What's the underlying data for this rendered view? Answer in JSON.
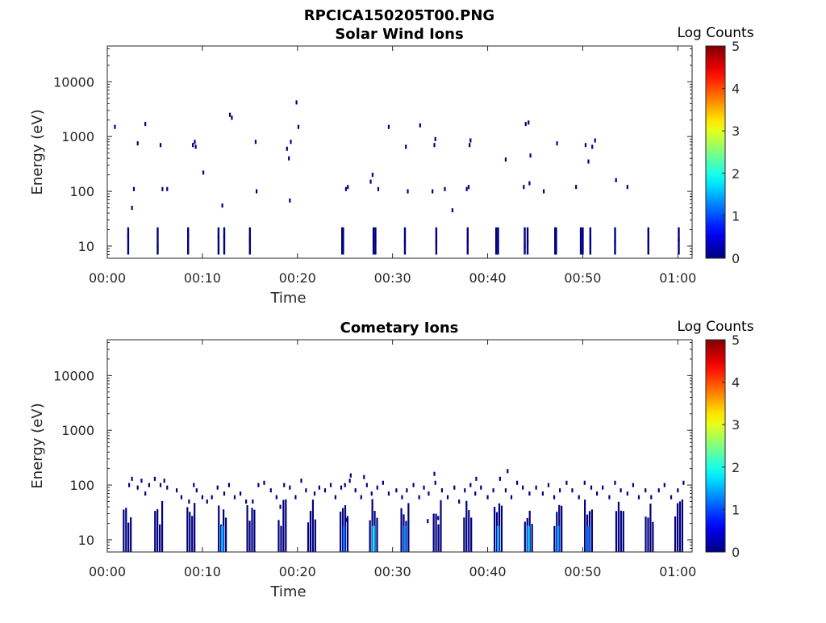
{
  "figure": {
    "title": "RPCICA150205T00.PNG"
  },
  "chart_data": [
    {
      "type": "heatmap",
      "title": "Solar Wind Ions",
      "xlabel": "Time",
      "ylabel": "Energy (eV)",
      "y_scale": "log",
      "xlim_minutes": [
        0,
        61.5
      ],
      "ylim": [
        6,
        45000
      ],
      "x_ticks": [
        "00:00",
        "00:10",
        "00:20",
        "00:30",
        "00:40",
        "00:50",
        "01:00"
      ],
      "y_ticks": [
        "10",
        "100",
        "1000",
        "10000"
      ],
      "colorbar": {
        "label": "Log Counts",
        "range": [
          0,
          5
        ],
        "ticks": [
          "0",
          "1",
          "2",
          "3",
          "4",
          "5"
        ],
        "colormap": "jet"
      },
      "events": [
        [
          0.8,
          1500,
          0
        ],
        [
          2.2,
          15,
          0
        ],
        [
          2.6,
          50,
          0
        ],
        [
          2.8,
          110,
          0
        ],
        [
          3.2,
          750,
          0
        ],
        [
          4.0,
          1700,
          0
        ],
        [
          5.3,
          10,
          0
        ],
        [
          5.6,
          700,
          0
        ],
        [
          5.8,
          110,
          0
        ],
        [
          6.3,
          110,
          0
        ],
        [
          8.5,
          15,
          0
        ],
        [
          9.0,
          700,
          0
        ],
        [
          9.2,
          800,
          0
        ],
        [
          9.3,
          650,
          0
        ],
        [
          10.1,
          220,
          0
        ],
        [
          11.7,
          15,
          0
        ],
        [
          12.1,
          55,
          0
        ],
        [
          12.3,
          15,
          0
        ],
        [
          12.9,
          2500,
          0
        ],
        [
          13.1,
          2200,
          0
        ],
        [
          15.0,
          13,
          0
        ],
        [
          15.6,
          800,
          0
        ],
        [
          15.7,
          100,
          0
        ],
        [
          18.9,
          600,
          0
        ],
        [
          19.1,
          400,
          0
        ],
        [
          19.2,
          68,
          0
        ],
        [
          19.3,
          800,
          0
        ],
        [
          19.9,
          4200,
          0
        ],
        [
          20.1,
          1500,
          0
        ],
        [
          24.7,
          15,
          0
        ],
        [
          24.8,
          12,
          0
        ],
        [
          25.1,
          110,
          0
        ],
        [
          25.3,
          120,
          0
        ],
        [
          27.7,
          150,
          0
        ],
        [
          27.9,
          200,
          0
        ],
        [
          28.0,
          15,
          0
        ],
        [
          28.2,
          12,
          0
        ],
        [
          28.5,
          110,
          0
        ],
        [
          29.6,
          1500,
          0
        ],
        [
          31.3,
          12,
          0
        ],
        [
          31.4,
          650,
          0
        ],
        [
          31.6,
          100,
          0
        ],
        [
          32.9,
          1600,
          0
        ],
        [
          34.2,
          100,
          0
        ],
        [
          34.4,
          700,
          0
        ],
        [
          34.5,
          900,
          0
        ],
        [
          34.6,
          12,
          0
        ],
        [
          35.5,
          110,
          0
        ],
        [
          36.3,
          45,
          0
        ],
        [
          37.8,
          110,
          0
        ],
        [
          37.9,
          12,
          0
        ],
        [
          38.0,
          120,
          0
        ],
        [
          38.1,
          700,
          0
        ],
        [
          38.2,
          850,
          0
        ],
        [
          40.9,
          15,
          0
        ],
        [
          41.1,
          12,
          0
        ],
        [
          41.9,
          380,
          0
        ],
        [
          43.8,
          120,
          0
        ],
        [
          43.9,
          10,
          0
        ],
        [
          44.0,
          1700,
          0
        ],
        [
          44.2,
          12,
          0
        ],
        [
          44.3,
          1800,
          0
        ],
        [
          44.4,
          140,
          0
        ],
        [
          44.5,
          450,
          0
        ],
        [
          45.9,
          100,
          0
        ],
        [
          47.1,
          15,
          0
        ],
        [
          47.2,
          12,
          0
        ],
        [
          47.3,
          750,
          0
        ],
        [
          49.3,
          120,
          0
        ],
        [
          49.8,
          18,
          0
        ],
        [
          50.0,
          15,
          0
        ],
        [
          50.3,
          700,
          0
        ],
        [
          50.6,
          350,
          0
        ],
        [
          50.8,
          13,
          0
        ],
        [
          51.0,
          650,
          0
        ],
        [
          51.3,
          850,
          0
        ],
        [
          53.4,
          12,
          0
        ],
        [
          53.5,
          160,
          0
        ],
        [
          54.7,
          120,
          0
        ],
        [
          56.9,
          12,
          0
        ],
        [
          60.1,
          13,
          0
        ]
      ]
    },
    {
      "type": "heatmap",
      "title": "Cometary Ions",
      "xlabel": "Time",
      "ylabel": "Energy (eV)",
      "y_scale": "log",
      "xlim_minutes": [
        0,
        61.5
      ],
      "ylim": [
        6,
        45000
      ],
      "x_ticks": [
        "00:00",
        "00:10",
        "00:20",
        "00:30",
        "00:40",
        "00:50",
        "01:00"
      ],
      "y_ticks": [
        "10",
        "100",
        "1000",
        "10000"
      ],
      "colorbar": {
        "label": "Log Counts",
        "range": [
          0,
          5
        ],
        "ticks": [
          "0",
          "1",
          "2",
          "3",
          "4",
          "5"
        ],
        "colormap": "jet"
      },
      "sweep_times": [
        2.1,
        5.4,
        8.8,
        12.1,
        15.1,
        18.4,
        21.5,
        24.9,
        28.0,
        31.3,
        34.7,
        37.9,
        41.1,
        44.3,
        47.4,
        50.6,
        53.9,
        57.0,
        60.1
      ],
      "strong_columns": [
        [
          12.1,
          1.5
        ],
        [
          24.9,
          1.2
        ],
        [
          28.0,
          1.8
        ],
        [
          31.3,
          1.3
        ],
        [
          41.1,
          1.5
        ],
        [
          44.3,
          1.6
        ],
        [
          47.4,
          1.4
        ],
        [
          50.6,
          1.2
        ]
      ],
      "events": [
        [
          2.3,
          100,
          0
        ],
        [
          2.6,
          130,
          0
        ],
        [
          3.2,
          90,
          0
        ],
        [
          3.6,
          120,
          0
        ],
        [
          4.0,
          70,
          0
        ],
        [
          4.4,
          100,
          0
        ],
        [
          5.0,
          130,
          0
        ],
        [
          5.6,
          100,
          0
        ],
        [
          6.0,
          120,
          0
        ],
        [
          6.3,
          90,
          0
        ],
        [
          7.3,
          80,
          0
        ],
        [
          7.8,
          60,
          0
        ],
        [
          8.6,
          50,
          0
        ],
        [
          9.1,
          100,
          0
        ],
        [
          9.4,
          80,
          0
        ],
        [
          10.0,
          60,
          0
        ],
        [
          10.5,
          50,
          0
        ],
        [
          11.0,
          60,
          0
        ],
        [
          11.6,
          90,
          0
        ],
        [
          12.3,
          70,
          0
        ],
        [
          12.8,
          100,
          0
        ],
        [
          13.4,
          60,
          0
        ],
        [
          14.0,
          70,
          0
        ],
        [
          14.6,
          50,
          0
        ],
        [
          15.3,
          50,
          0
        ],
        [
          15.9,
          100,
          0
        ],
        [
          16.5,
          110,
          0
        ],
        [
          17.2,
          80,
          0
        ],
        [
          17.8,
          60,
          0
        ],
        [
          18.2,
          40,
          0
        ],
        [
          18.6,
          100,
          0
        ],
        [
          19.2,
          90,
          0
        ],
        [
          19.8,
          60,
          0
        ],
        [
          20.4,
          120,
          0
        ],
        [
          20.9,
          80,
          0
        ],
        [
          21.8,
          70,
          0
        ],
        [
          22.3,
          90,
          0
        ],
        [
          22.9,
          80,
          0
        ],
        [
          23.5,
          100,
          0
        ],
        [
          24.0,
          60,
          0
        ],
        [
          24.6,
          90,
          0
        ],
        [
          25.0,
          100,
          0
        ],
        [
          25.5,
          120,
          0
        ],
        [
          26.1,
          80,
          0
        ],
        [
          26.7,
          60,
          0
        ],
        [
          27.3,
          100,
          0
        ],
        [
          27.8,
          70,
          0
        ],
        [
          28.4,
          90,
          0
        ],
        [
          29.0,
          110,
          0
        ],
        [
          29.6,
          70,
          0
        ],
        [
          30.4,
          80,
          0
        ],
        [
          31.0,
          60,
          0
        ],
        [
          31.5,
          80,
          0
        ],
        [
          32.2,
          100,
          0
        ],
        [
          32.8,
          60,
          0
        ],
        [
          33.3,
          90,
          0
        ],
        [
          33.8,
          70,
          0
        ],
        [
          34.5,
          110,
          0
        ],
        [
          35.2,
          80,
          0
        ],
        [
          35.8,
          60,
          0
        ],
        [
          36.5,
          90,
          0
        ],
        [
          37.0,
          50,
          0
        ],
        [
          37.6,
          80,
          0
        ],
        [
          38.2,
          100,
          0
        ],
        [
          38.7,
          70,
          0
        ],
        [
          39.3,
          90,
          0
        ],
        [
          40.0,
          60,
          0
        ],
        [
          40.6,
          80,
          0
        ],
        [
          41.3,
          130,
          0
        ],
        [
          41.9,
          80,
          0
        ],
        [
          42.5,
          60,
          0
        ],
        [
          43.1,
          110,
          0
        ],
        [
          43.7,
          90,
          0
        ],
        [
          44.4,
          70,
          0
        ],
        [
          45.1,
          90,
          0
        ],
        [
          45.8,
          70,
          0
        ],
        [
          46.4,
          100,
          0
        ],
        [
          47.0,
          60,
          0
        ],
        [
          47.6,
          80,
          0
        ],
        [
          48.3,
          110,
          0
        ],
        [
          48.9,
          80,
          0
        ],
        [
          49.6,
          60,
          0
        ],
        [
          50.2,
          110,
          0
        ],
        [
          50.9,
          90,
          0
        ],
        [
          51.5,
          70,
          0
        ],
        [
          52.1,
          90,
          0
        ],
        [
          52.8,
          60,
          0
        ],
        [
          53.4,
          110,
          0
        ],
        [
          54.0,
          80,
          0
        ],
        [
          54.7,
          70,
          0
        ],
        [
          55.3,
          100,
          0
        ],
        [
          55.9,
          60,
          0
        ],
        [
          56.6,
          80,
          0
        ],
        [
          57.2,
          60,
          0
        ],
        [
          58.0,
          80,
          0
        ],
        [
          58.6,
          100,
          0
        ],
        [
          59.3,
          60,
          0
        ],
        [
          60.0,
          80,
          0
        ],
        [
          60.6,
          110,
          0
        ],
        [
          25.6,
          150,
          0
        ],
        [
          34.4,
          160,
          0
        ],
        [
          27.0,
          140,
          0
        ],
        [
          38.8,
          130,
          0
        ],
        [
          42.1,
          180,
          0
        ],
        [
          25.2,
          23,
          0
        ],
        [
          33.7,
          22,
          0
        ],
        [
          34.8,
          25,
          0
        ]
      ]
    }
  ]
}
